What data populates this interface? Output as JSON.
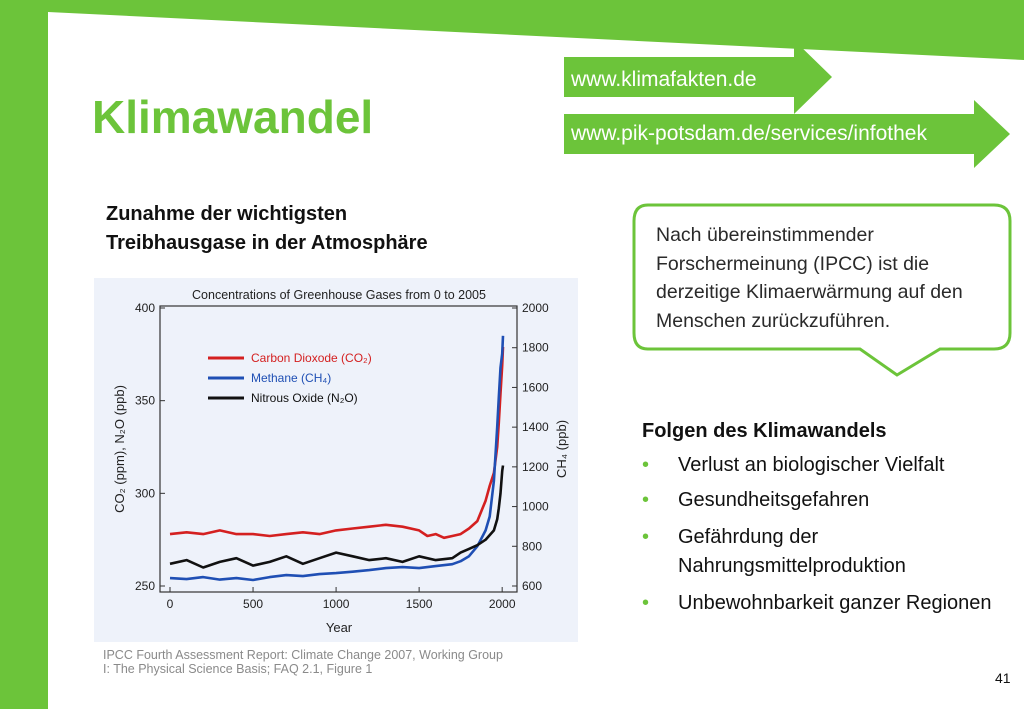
{
  "slide": {
    "title": "Klimawandel",
    "links": [
      "www.klimafakten.de",
      "www.pik-potsdam.de/services/infothek"
    ],
    "chart_heading_line1": "Zunahme der wichtigsten",
    "chart_heading_line2": "Treibhausgase in der Atmosphäre",
    "callout_text": "Nach übereinstimmender Forschermeinung (IPCC) ist die derzeitige Klimaerwärmung auf den Menschen zurückzuführen.",
    "consequences_heading": "Folgen des Klimawandels",
    "consequences": [
      "Verlust an biologischer Vielfalt",
      "Gesundheitsgefahren",
      "Gefährdung der Nahrungsmittelproduktion",
      "Unbewohnbarkeit ganzer Regionen"
    ],
    "source": "IPCC Fourth Assessment Report: Climate Change 2007, Working Group I: The Physical Science Basis; FAQ 2.1, Figure 1",
    "page_number": "41",
    "accent_color": "#6cc43a"
  },
  "chart_data": {
    "type": "line",
    "title": "Concentrations of Greenhouse Gases from 0 to 2005",
    "xlabel": "Year",
    "ylabel_left": "CO₂ (ppm), N₂O (ppb)",
    "ylabel_right": "CH₄ (ppb)",
    "xlim": [
      0,
      2005
    ],
    "ylim_left": [
      250,
      400
    ],
    "ylim_right": [
      600,
      2000
    ],
    "x_ticks": [
      0,
      500,
      1000,
      1500,
      2000
    ],
    "y_ticks_left": [
      250,
      300,
      350,
      400
    ],
    "y_ticks_right": [
      600,
      800,
      1000,
      1200,
      1400,
      1600,
      1800,
      2000
    ],
    "legend_position": "top-left",
    "series": [
      {
        "name": "Carbon Dioxode (CO₂)",
        "color": "#d42020",
        "axis": "left",
        "x": [
          0,
          100,
          200,
          300,
          400,
          500,
          600,
          700,
          800,
          900,
          1000,
          1100,
          1200,
          1300,
          1400,
          1500,
          1550,
          1600,
          1650,
          1700,
          1750,
          1800,
          1850,
          1900,
          1925,
          1950,
          1970,
          1980,
          1990,
          2000,
          2005
        ],
        "values": [
          278,
          279,
          278,
          280,
          278,
          278,
          277,
          278,
          279,
          278,
          280,
          281,
          282,
          283,
          282,
          280,
          277,
          278,
          276,
          277,
          278,
          281,
          285,
          296,
          304,
          311,
          325,
          338,
          354,
          369,
          379
        ]
      },
      {
        "name": "Methane (CH₄)",
        "color": "#1f4fb4",
        "axis": "right",
        "x": [
          0,
          100,
          200,
          300,
          400,
          500,
          600,
          700,
          800,
          900,
          1000,
          1100,
          1200,
          1300,
          1400,
          1500,
          1600,
          1700,
          1750,
          1800,
          1850,
          1900,
          1925,
          1950,
          1970,
          1980,
          1990,
          2000,
          2005
        ],
        "values": [
          640,
          635,
          645,
          632,
          640,
          630,
          645,
          655,
          650,
          660,
          665,
          672,
          680,
          690,
          695,
          690,
          700,
          710,
          725,
          750,
          800,
          880,
          950,
          1130,
          1400,
          1550,
          1700,
          1770,
          1860
        ]
      },
      {
        "name": "Nitrous Oxide (N₂O)",
        "color": "#111111",
        "axis": "left",
        "x": [
          0,
          100,
          200,
          300,
          400,
          500,
          600,
          700,
          800,
          900,
          1000,
          1100,
          1200,
          1300,
          1400,
          1500,
          1600,
          1700,
          1750,
          1800,
          1850,
          1900,
          1950,
          1970,
          1980,
          1990,
          2000,
          2005
        ],
        "values": [
          262,
          264,
          260,
          263,
          265,
          261,
          263,
          266,
          262,
          265,
          268,
          266,
          264,
          265,
          263,
          266,
          264,
          265,
          268,
          270,
          272,
          275,
          280,
          286,
          292,
          300,
          312,
          315
        ]
      }
    ]
  }
}
